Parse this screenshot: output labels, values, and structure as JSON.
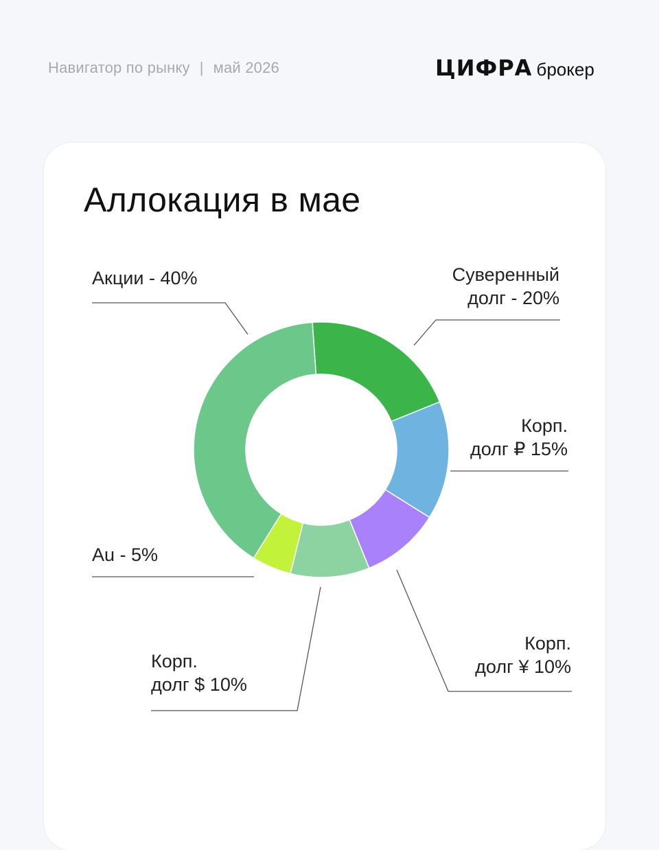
{
  "header": {
    "section": "Навигатор по рынку",
    "separator": "|",
    "date": "май 2026",
    "logo_mark": "ЦИФРА",
    "logo_sub": "брокер"
  },
  "chart_data": {
    "type": "pie",
    "title": "Аллокация в мае",
    "categories": [
      "Суверенный долг",
      "Корп. долг ₽",
      "Корп. долг ¥",
      "Корп. долг $",
      "Au",
      "Акции"
    ],
    "values": [
      20,
      15,
      10,
      10,
      5,
      40
    ],
    "colors": [
      "#3bb54a",
      "#6fb4e0",
      "#a982fb",
      "#8dd3a1",
      "#c3f23a",
      "#6bc78a"
    ],
    "labels": {
      "stocks": {
        "line1": "Акции - 40%"
      },
      "sovereign": {
        "line1": "Суверенный",
        "line2": "долг - 20%"
      },
      "corp_rub": {
        "line1": "Корп.",
        "line2": "долг ₽ 15%"
      },
      "corp_cny": {
        "line1": "Корп.",
        "line2": "долг ¥ 10%"
      },
      "corp_usd": {
        "line1": "Корп.",
        "line2": "долг $ 10%"
      },
      "gold": {
        "line1": "Au - 5%"
      }
    }
  }
}
